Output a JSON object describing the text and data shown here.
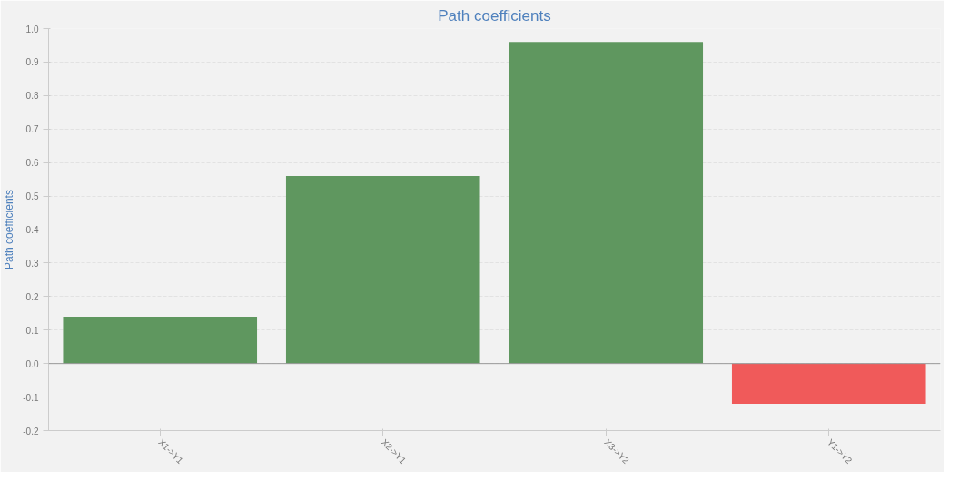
{
  "chart_data": {
    "type": "bar",
    "title": "Path coefficients",
    "ylabel": "Path coefficients",
    "categories": [
      "X1->Y1",
      "X2->Y1",
      "X3->Y2",
      "Y1->Y2"
    ],
    "values": [
      0.14,
      0.56,
      0.96,
      -0.12
    ],
    "colors": [
      "#5f975f",
      "#5f975f",
      "#5f975f",
      "#f05a5a"
    ],
    "ylim": [
      -0.2,
      1.0
    ],
    "yticks": [
      {
        "value": -0.2,
        "label": "-0.2"
      },
      {
        "value": -0.1,
        "label": "-0.1"
      },
      {
        "value": 0,
        "label": "0.0"
      },
      {
        "value": 0.1,
        "label": "0.1"
      },
      {
        "value": 0.2,
        "label": "0.2"
      },
      {
        "value": 0.3,
        "label": "0.3"
      },
      {
        "value": 0.4,
        "label": "0.4"
      },
      {
        "value": 0.5,
        "label": "0.5"
      },
      {
        "value": 0.6,
        "label": "0.6"
      },
      {
        "value": 0.7,
        "label": "0.7"
      },
      {
        "value": 0.8,
        "label": "0.8"
      },
      {
        "value": 0.9,
        "label": "0.9"
      },
      {
        "value": 1.0,
        "label": "1.0"
      }
    ],
    "grid": "y"
  }
}
